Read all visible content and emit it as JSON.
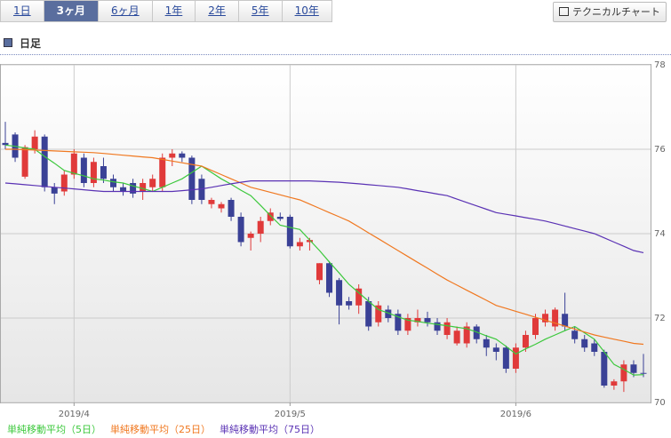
{
  "tabs": [
    "1日",
    "3ヶ月",
    "6ヶ月",
    "1年",
    "2年",
    "5年",
    "10年"
  ],
  "active_tab": 1,
  "button": "テクニカルチャート",
  "section": "日足",
  "chart_data": {
    "type": "candlestick",
    "categories": [
      null,
      null,
      null,
      null,
      null,
      null,
      null,
      "2019/4",
      null,
      null,
      null,
      null,
      null,
      null,
      null,
      null,
      null,
      null,
      null,
      null,
      null,
      null,
      null,
      null,
      null,
      null,
      null,
      null,
      null,
      "2019/5",
      null,
      null,
      null,
      null,
      null,
      null,
      null,
      null,
      null,
      null,
      null,
      null,
      null,
      null,
      null,
      null,
      null,
      null,
      null,
      null,
      null,
      null,
      "2019/6",
      null,
      null,
      null,
      null,
      null,
      null,
      null,
      null,
      null,
      null,
      null,
      null,
      null
    ],
    "open": [
      76.15,
      76.35,
      75.35,
      76.0,
      76.3,
      75.1,
      75.0,
      75.4,
      75.8,
      75.2,
      75.6,
      75.3,
      75.1,
      75.2,
      75.0,
      75.1,
      75.1,
      75.8,
      75.9,
      75.8,
      75.3,
      74.7,
      74.6,
      74.8,
      74.4,
      73.9,
      74.0,
      74.3,
      74.4,
      74.4,
      73.7,
      73.8,
      72.9,
      73.3,
      72.9,
      72.4,
      72.3,
      72.4,
      71.9,
      72.2,
      72.1,
      71.7,
      71.9,
      72.0,
      71.9,
      71.6,
      71.4,
      71.4,
      71.8,
      71.5,
      71.3,
      71.3,
      70.8,
      71.3,
      71.6,
      71.9,
      71.8,
      72.1,
      71.7,
      71.5,
      71.4,
      71.2,
      70.4,
      70.5,
      70.9,
      70.7
    ],
    "high": [
      76.65,
      76.4,
      76.1,
      76.45,
      76.35,
      75.2,
      75.5,
      76.0,
      75.9,
      75.8,
      75.8,
      75.4,
      75.2,
      75.3,
      75.3,
      75.4,
      75.9,
      76.0,
      75.95,
      75.85,
      75.4,
      74.85,
      74.75,
      74.85,
      74.5,
      74.05,
      74.4,
      74.6,
      74.5,
      74.45,
      73.9,
      73.9,
      73.3,
      73.35,
      72.95,
      72.5,
      72.8,
      72.5,
      72.4,
      72.3,
      72.2,
      72.1,
      72.2,
      72.15,
      72.0,
      72.0,
      71.8,
      71.9,
      71.85,
      71.6,
      71.4,
      71.35,
      71.4,
      71.7,
      72.1,
      72.2,
      72.25,
      72.6,
      71.8,
      71.6,
      71.5,
      71.25,
      70.55,
      71.0,
      71.0,
      71.15
    ],
    "low": [
      76.0,
      75.7,
      75.3,
      75.9,
      75.0,
      74.7,
      74.9,
      75.3,
      75.1,
      75.1,
      75.2,
      75.0,
      74.9,
      74.85,
      74.8,
      75.0,
      75.0,
      75.6,
      75.7,
      74.7,
      74.7,
      74.6,
      74.5,
      74.3,
      73.7,
      73.6,
      73.8,
      74.2,
      74.3,
      73.65,
      73.6,
      73.6,
      72.8,
      72.5,
      71.85,
      72.2,
      72.1,
      71.7,
      71.8,
      71.9,
      71.6,
      71.6,
      71.8,
      71.8,
      71.6,
      71.5,
      71.35,
      71.3,
      71.4,
      71.1,
      71.0,
      70.7,
      70.7,
      71.2,
      71.5,
      71.8,
      71.7,
      71.7,
      71.4,
      71.2,
      71.1,
      70.35,
      70.3,
      70.25,
      70.6,
      70.6
    ],
    "close": [
      76.1,
      75.8,
      76.05,
      76.3,
      75.1,
      74.95,
      75.4,
      75.9,
      75.2,
      75.7,
      75.3,
      75.1,
      75.0,
      74.95,
      75.2,
      75.3,
      75.8,
      75.9,
      75.8,
      74.8,
      74.8,
      74.8,
      74.7,
      74.4,
      73.8,
      74.0,
      74.3,
      74.5,
      74.35,
      73.7,
      73.8,
      73.85,
      73.3,
      72.6,
      72.3,
      72.3,
      72.7,
      71.8,
      72.3,
      72.0,
      71.7,
      72.0,
      72.0,
      71.9,
      71.7,
      71.9,
      71.7,
      71.8,
      71.5,
      71.3,
      71.2,
      70.8,
      71.3,
      71.6,
      72.0,
      72.1,
      72.2,
      71.8,
      71.5,
      71.3,
      71.2,
      70.4,
      70.5,
      70.9,
      70.7,
      70.68
    ],
    "up_color": "#e03a3a",
    "down_color": "#3a4196",
    "series": [
      {
        "name": "単純移動平均（5日）",
        "color": "#3cc83c",
        "values": [
          76.1,
          76.07,
          76.03,
          76.0,
          75.83,
          75.67,
          75.5,
          75.43,
          75.37,
          75.3,
          75.27,
          75.23,
          75.2,
          75.13,
          75.07,
          75.0,
          75.1,
          75.2,
          75.3,
          75.45,
          75.6,
          75.45,
          75.3,
          75.17,
          75.03,
          74.9,
          74.67,
          74.43,
          74.2,
          74.15,
          74.1,
          73.85,
          73.6,
          73.33,
          73.07,
          72.8,
          72.6,
          72.4,
          72.2,
          72.12,
          72.03,
          71.95,
          71.92,
          71.88,
          71.85,
          71.82,
          71.78,
          71.75,
          71.67,
          71.58,
          71.5,
          71.33,
          71.15,
          71.27,
          71.38,
          71.5,
          71.6,
          71.7,
          71.8,
          71.65,
          71.5,
          71.2,
          70.9,
          70.78,
          70.65,
          70.66
        ]
      },
      {
        "name": "単純移動平均（25日）",
        "color": "#f07820",
        "values": [
          76.0,
          76.0,
          75.99,
          75.98,
          75.97,
          75.96,
          75.95,
          75.94,
          75.93,
          75.92,
          75.9,
          75.88,
          75.86,
          75.84,
          75.82,
          75.8,
          75.76,
          75.72,
          75.68,
          75.64,
          75.6,
          75.5,
          75.4,
          75.3,
          75.2,
          75.1,
          75.04,
          74.98,
          74.92,
          74.86,
          74.8,
          74.7,
          74.6,
          74.5,
          74.4,
          74.3,
          74.16,
          74.02,
          73.88,
          73.74,
          73.6,
          73.46,
          73.32,
          73.18,
          73.04,
          72.9,
          72.78,
          72.66,
          72.54,
          72.42,
          72.3,
          72.23,
          72.16,
          72.09,
          72.02,
          71.95,
          71.88,
          71.81,
          71.74,
          71.67,
          71.6,
          71.55,
          71.5,
          71.45,
          71.4,
          71.38
        ]
      },
      {
        "name": "単純移動平均（75日）",
        "color": "#5a32b4",
        "values": [
          75.2,
          75.18,
          75.16,
          75.14,
          75.12,
          75.1,
          75.08,
          75.06,
          75.04,
          75.02,
          75.0,
          75.0,
          75.0,
          75.0,
          75.0,
          75.0,
          75.0,
          75.0,
          75.02,
          75.04,
          75.06,
          75.1,
          75.14,
          75.18,
          75.22,
          75.25,
          75.25,
          75.25,
          75.25,
          75.25,
          75.25,
          75.25,
          75.24,
          75.23,
          75.22,
          75.2,
          75.18,
          75.16,
          75.14,
          75.12,
          75.1,
          75.06,
          75.02,
          74.98,
          74.94,
          74.9,
          74.82,
          74.74,
          74.66,
          74.58,
          74.5,
          74.46,
          74.42,
          74.38,
          74.34,
          74.3,
          74.24,
          74.18,
          74.12,
          74.06,
          74.0,
          73.9,
          73.8,
          73.7,
          73.6,
          73.55
        ]
      }
    ],
    "ylim": [
      70,
      78
    ],
    "yticks": [
      70,
      72,
      74,
      76,
      78
    ],
    "grid": true
  }
}
